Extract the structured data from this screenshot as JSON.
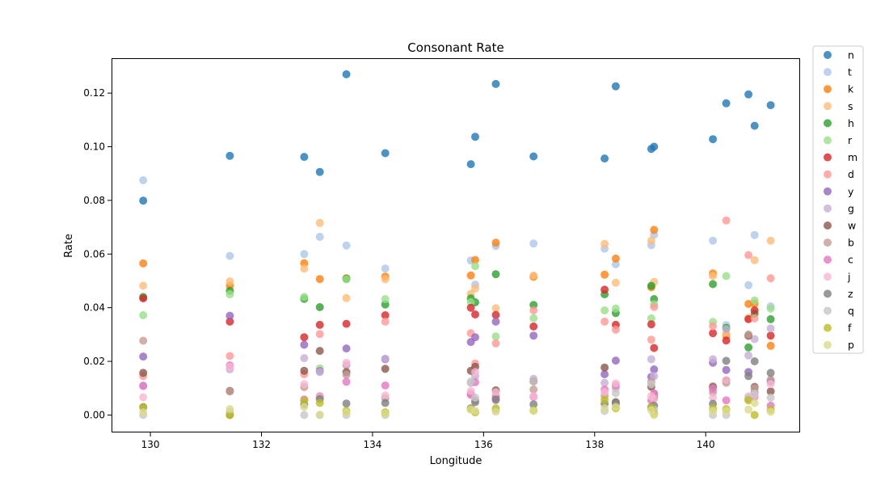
{
  "chart_data": {
    "type": "scatter",
    "title": "Consonant Rate",
    "xlabel": "Longitude",
    "ylabel": "Rate",
    "xlim": [
      129.3,
      141.7
    ],
    "ylim": [
      -0.0065,
      0.133
    ],
    "xticks": [
      130,
      132,
      134,
      136,
      138,
      140
    ],
    "yticks": [
      0.0,
      0.02,
      0.04,
      0.06,
      0.08,
      0.1,
      0.12
    ],
    "ytick_labels": [
      "0.00",
      "0.02",
      "0.04",
      "0.06",
      "0.08",
      "0.10",
      "0.12"
    ],
    "grid": false,
    "legend_position": "outside-right",
    "x": [
      129.87,
      131.43,
      132.77,
      133.05,
      133.53,
      134.23,
      135.77,
      135.85,
      136.22,
      136.9,
      138.18,
      138.38,
      139.02,
      139.07,
      140.13,
      140.37,
      140.77,
      140.88,
      141.17
    ],
    "series": [
      {
        "name": "n",
        "color": "#1f77b4",
        "values": [
          0.0799,
          0.0966,
          0.0962,
          0.0906,
          0.127,
          0.0976,
          0.0935,
          0.1037,
          0.1234,
          0.0964,
          0.0956,
          0.1225,
          0.0992,
          0.1,
          0.1028,
          0.1162,
          0.1195,
          0.1078,
          0.1155
        ]
      },
      {
        "name": "t",
        "color": "#aec7e8",
        "values": [
          0.0875,
          0.0593,
          0.06,
          0.0664,
          0.0632,
          0.0546,
          0.0576,
          0.0486,
          0.063,
          0.0639,
          0.062,
          0.0562,
          0.0633,
          0.0672,
          0.065,
          0.0335,
          0.0484,
          0.0671,
          0.0405
        ]
      },
      {
        "name": "k",
        "color": "#ff7f0e",
        "values": [
          0.0565,
          0.0482,
          0.0566,
          0.0507,
          0.051,
          0.0516,
          0.052,
          0.0578,
          0.0642,
          0.0515,
          0.0523,
          0.0583,
          0.0476,
          0.069,
          0.0528,
          0.0297,
          0.0414,
          0.0415,
          0.0258
        ]
      },
      {
        "name": "s",
        "color": "#ffbb78",
        "values": [
          0.0482,
          0.0498,
          0.0546,
          0.0716,
          0.0436,
          0.0506,
          0.0452,
          0.0472,
          0.0398,
          0.052,
          0.0638,
          0.0493,
          0.065,
          0.0496,
          0.0518,
          0.0303,
          0.0362,
          0.0577,
          0.065
        ]
      },
      {
        "name": "h",
        "color": "#2ca02c",
        "values": [
          0.044,
          0.0463,
          0.0433,
          0.0402,
          0.0508,
          0.0412,
          0.0435,
          0.042,
          0.0525,
          0.041,
          0.045,
          0.038,
          0.0482,
          0.0432,
          0.0488,
          0.0325,
          0.0252,
          0.0378,
          0.0357
        ]
      },
      {
        "name": "r",
        "color": "#98df8a",
        "values": [
          0.0372,
          0.045,
          0.044,
          0.0174,
          0.0506,
          0.0432,
          0.042,
          0.0555,
          0.0293,
          0.0361,
          0.039,
          0.0397,
          0.036,
          0.0413,
          0.0347,
          0.0518,
          0.0298,
          0.0427,
          0.0397
        ]
      },
      {
        "name": "m",
        "color": "#d62728",
        "values": [
          0.0435,
          0.0348,
          0.029,
          0.0336,
          0.034,
          0.0372,
          0.04,
          0.0375,
          0.0373,
          0.033,
          0.0467,
          0.0336,
          0.0338,
          0.025,
          0.0305,
          0.0278,
          0.0357,
          0.039,
          0.0296
        ]
      },
      {
        "name": "d",
        "color": "#ff9896",
        "values": [
          0.0145,
          0.022,
          0.0152,
          0.0302,
          0.0187,
          0.0348,
          0.0305,
          0.0192,
          0.0267,
          0.039,
          0.0348,
          0.0318,
          0.0281,
          0.0403,
          0.0331,
          0.0725,
          0.0596,
          0.036,
          0.051
        ]
      },
      {
        "name": "y",
        "color": "#9467bd",
        "values": [
          0.0218,
          0.037,
          0.0262,
          0.0164,
          0.0248,
          0.0208,
          0.0272,
          0.029,
          0.0348,
          0.0296,
          0.0152,
          0.0203,
          0.0142,
          0.017,
          0.0195,
          0.0168,
          0.016,
          0.0085,
          0.0125
        ]
      },
      {
        "name": "g",
        "color": "#c5b0d5",
        "values": [
          0.011,
          0.017,
          0.0212,
          0.016,
          0.0185,
          0.021,
          0.012,
          0.0145,
          0.0055,
          0.0135,
          0.012,
          0.01,
          0.0208,
          0.0145,
          0.0208,
          0.032,
          0.0222,
          0.0283,
          0.0323
        ]
      },
      {
        "name": "w",
        "color": "#8c564b",
        "values": [
          0.0157,
          0.009,
          0.0165,
          0.0239,
          0.016,
          0.0172,
          0.0165,
          0.018,
          0.0092,
          0.0125,
          0.0177,
          0.0048,
          0.0105,
          0.0065,
          0.0106,
          0.0128,
          0.0295,
          0.0105,
          0.0088
        ]
      },
      {
        "name": "b",
        "color": "#c49c94",
        "values": [
          0.0277,
          0.0088,
          0.0104,
          0.0068,
          0.015,
          0.0062,
          0.008,
          0.0055,
          0.0072,
          0.0095,
          0.0072,
          0.004,
          0.0124,
          0.008,
          0.0085,
          0.012,
          0.03,
          0.01,
          0.0132
        ]
      },
      {
        "name": "c",
        "color": "#e377c2",
        "values": [
          0.0108,
          0.0185,
          0.0058,
          0.007,
          0.0124,
          0.011,
          0.0075,
          0.0122,
          0.0063,
          0.0068,
          0.0095,
          0.011,
          0.0055,
          0.008,
          0.0098,
          0.0055,
          0.006,
          0.0068,
          0.0035
        ]
      },
      {
        "name": "j",
        "color": "#f7b6d2",
        "values": [
          0.0066,
          0.018,
          0.0115,
          0.0067,
          0.0195,
          0.0073,
          0.009,
          0.016,
          0.0085,
          0.007,
          0.0085,
          0.0118,
          0.007,
          0.006,
          0.0065,
          0.013,
          0.007,
          0.0075,
          0.0115
        ]
      },
      {
        "name": "z",
        "color": "#7f7f7f",
        "values": [
          0.003,
          0.0,
          0.004,
          0.006,
          0.0043,
          0.0045,
          0.0025,
          0.0048,
          0.0058,
          0.004,
          0.0042,
          0.0045,
          0.003,
          0.0035,
          0.0042,
          0.0202,
          0.0145,
          0.02,
          0.0157
        ]
      },
      {
        "name": "q",
        "color": "#c7c7c7",
        "values": [
          0.0,
          0.0013,
          0.0,
          0.0,
          0.0,
          0.0,
          0.0125,
          0.0065,
          0.0018,
          0.0125,
          0.0015,
          0.0082,
          0.0115,
          0.002,
          0.0,
          0.0,
          0.0065,
          0.008,
          0.0065
        ]
      },
      {
        "name": "f",
        "color": "#bcbd22",
        "values": [
          0.0028,
          0.0,
          0.0053,
          0.0045,
          0.0015,
          0.001,
          0.0022,
          0.001,
          0.0025,
          0.0018,
          0.0057,
          0.0025,
          0.0028,
          0.0005,
          0.0025,
          0.0022,
          0.0055,
          0.0,
          0.002
        ]
      },
      {
        "name": "p",
        "color": "#dbdb8d",
        "values": [
          0.001,
          0.0022,
          0.003,
          0.0,
          0.001,
          0.0005,
          0.002,
          0.0015,
          0.0012,
          0.0015,
          0.0025,
          0.003,
          0.0018,
          0.0,
          0.0015,
          0.0015,
          0.002,
          0.0045,
          0.0012
        ]
      }
    ]
  }
}
